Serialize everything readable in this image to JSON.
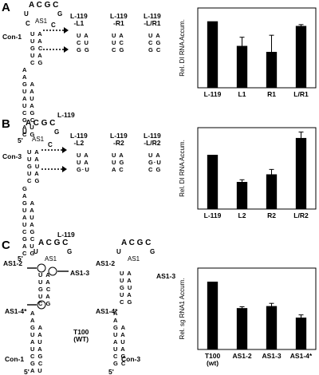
{
  "panels": {
    "A": {
      "label": "A",
      "construct": "Con-1",
      "loop_name": "AS1",
      "stem_label": "L-119",
      "five_prime": "5'",
      "variants": [
        "L-119\n-L1",
        "L-119\n-R1",
        "L-119\n-L/R1"
      ]
    },
    "B": {
      "label": "B",
      "construct": "Con-3",
      "loop_name": "AS1",
      "stem_label": "L-119",
      "five_prime": "5'",
      "variants": [
        "L-119\n-L2",
        "L-119\n-R2",
        "L-119\n-L/R2"
      ]
    },
    "C": {
      "label": "C",
      "loop_name": "AS1",
      "left_construct": "Con-1",
      "right_construct": "Con-3",
      "center_label": "T100\n(WT)",
      "five_prime": "5'",
      "mut_labels": [
        "AS1-2",
        "AS1-3",
        "AS1-4*"
      ]
    }
  },
  "chart_data": [
    {
      "type": "bar",
      "ylabel": "Rel. DI RNA Accum.",
      "categories": [
        "L-119",
        "L1",
        "R1",
        "L/R1"
      ],
      "values": [
        100,
        63,
        54,
        93
      ],
      "errors": [
        0,
        13,
        25,
        2
      ],
      "ylim": [
        0,
        120
      ],
      "bar_color": "#000000"
    },
    {
      "type": "bar",
      "ylabel": "Rel. DI RNA Accum.",
      "categories": [
        "L-119",
        "L2",
        "R2",
        "L/R2"
      ],
      "values": [
        100,
        50,
        64,
        131
      ],
      "errors": [
        0,
        4,
        9,
        11
      ],
      "ylim": [
        0,
        150
      ],
      "bar_color": "#000000"
    },
    {
      "type": "bar",
      "ylabel": "Rel. sg RNA1 Accum.",
      "categories": [
        "T100\n(wt)",
        "AS1-2",
        "AS1-3",
        "AS1-4*"
      ],
      "values": [
        100,
        61,
        64,
        47
      ],
      "errors": [
        0,
        2,
        4,
        4
      ],
      "ylim": [
        0,
        120
      ],
      "bar_color": "#000000"
    }
  ]
}
